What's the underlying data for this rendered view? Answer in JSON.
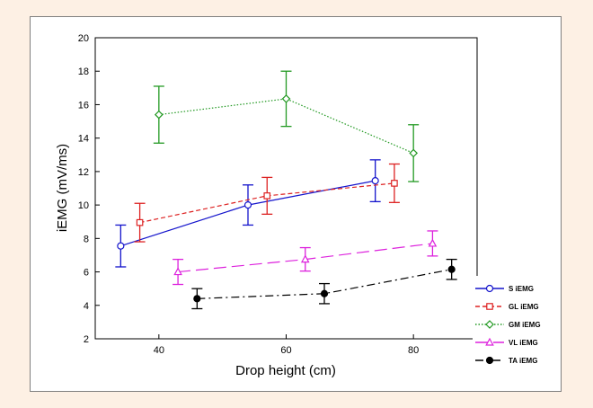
{
  "chart_data": {
    "type": "line",
    "xlabel": "Drop height (cm)",
    "ylabel": "iEMG (mV/ms)",
    "xlim": [
      30,
      90
    ],
    "ylim": [
      2,
      20
    ],
    "xticks": [
      40,
      60,
      80
    ],
    "yticks": [
      2,
      4,
      6,
      8,
      10,
      12,
      14,
      16,
      18,
      20
    ],
    "grid": false,
    "legend_position": "bottom-right",
    "series": [
      {
        "name": "S iEMG",
        "color": "#1414cc",
        "dash": "solid",
        "marker": "circle",
        "fill": "#ffffff",
        "x": [
          34,
          54,
          74
        ],
        "y": [
          7.55,
          10.0,
          11.45
        ],
        "err": [
          1.25,
          1.2,
          1.25
        ]
      },
      {
        "name": "GL iEMG",
        "color": "#dd2222",
        "dash": "dash",
        "marker": "square",
        "fill": "#ffffff",
        "x": [
          37,
          57,
          77
        ],
        "y": [
          8.95,
          10.55,
          11.3
        ],
        "err": [
          1.15,
          1.1,
          1.15
        ]
      },
      {
        "name": "GM iEMG",
        "color": "#229922",
        "dash": "dot",
        "marker": "diamond",
        "fill": "#ffffff",
        "x": [
          40,
          60,
          80
        ],
        "y": [
          15.4,
          16.35,
          13.1
        ],
        "err": [
          1.7,
          1.65,
          1.7
        ]
      },
      {
        "name": "VL iEMG",
        "color": "#dd22dd",
        "dash": "longdash",
        "marker": "triangle",
        "fill": "#ffffff",
        "x": [
          43,
          63,
          83
        ],
        "y": [
          6.0,
          6.75,
          7.7
        ],
        "err": [
          0.75,
          0.7,
          0.75
        ]
      },
      {
        "name": "TA iEMG",
        "color": "#000000",
        "dash": "dashdot",
        "marker": "circle",
        "fill": "#000000",
        "x": [
          46,
          66,
          86
        ],
        "y": [
          4.4,
          4.7,
          6.15
        ],
        "err": [
          0.6,
          0.6,
          0.6
        ]
      }
    ]
  }
}
